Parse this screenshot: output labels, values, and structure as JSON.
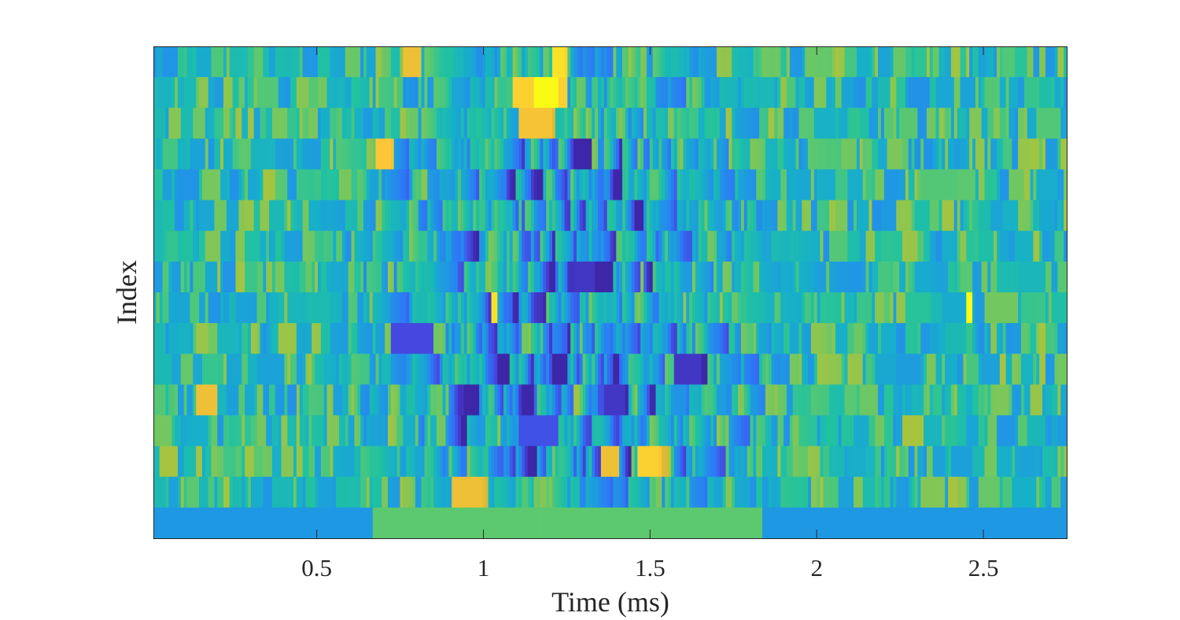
{
  "chart_data": {
    "type": "heatmap",
    "title": "",
    "xlabel": "Time (ms)",
    "ylabel": "Index",
    "xlim": [
      0.01,
      2.75
    ],
    "xticks": [
      0.5,
      1,
      1.5,
      2,
      2.5
    ],
    "xtick_labels": [
      "0.5",
      "1",
      "1.5",
      "2",
      "2.5"
    ],
    "yticks": [],
    "rows": 16,
    "colormap": "parula",
    "colormap_stops": [
      "#3e26a8",
      "#4548e0",
      "#2e77f7",
      "#1f98e3",
      "#17b0c8",
      "#21c2a0",
      "#5cc86f",
      "#a9c43e",
      "#dfb935",
      "#fcc638",
      "#f9fb15"
    ],
    "value_range": [
      0,
      1
    ],
    "grid": false,
    "colorbar": false,
    "features": [
      {
        "row": 1,
        "t_start": 1.08,
        "t_end": 1.25,
        "value": 0.92
      },
      {
        "row": 1,
        "t_start": 1.15,
        "t_end": 1.22,
        "value": 1.0
      },
      {
        "row": 0,
        "t_start": 0.75,
        "t_end": 0.8,
        "value": 0.85
      },
      {
        "row": 0,
        "t_start": 1.2,
        "t_end": 1.24,
        "value": 0.95
      },
      {
        "row": 2,
        "t_start": 1.1,
        "t_end": 1.2,
        "value": 0.88
      },
      {
        "row": 3,
        "t_start": 0.67,
        "t_end": 0.72,
        "value": 0.9
      },
      {
        "row": 8,
        "t_start": 2.44,
        "t_end": 2.46,
        "value": 1.0
      },
      {
        "row": 8,
        "t_start": 1.02,
        "t_end": 1.04,
        "value": 0.95
      },
      {
        "row": 11,
        "t_start": 0.13,
        "t_end": 0.2,
        "value": 0.85
      },
      {
        "row": 13,
        "t_start": 1.46,
        "t_end": 1.52,
        "value": 0.92
      },
      {
        "row": 13,
        "t_start": 1.35,
        "t_end": 1.4,
        "value": 0.85
      },
      {
        "row": 14,
        "t_start": 0.9,
        "t_end": 0.99,
        "value": 0.85
      },
      {
        "row": 15,
        "t_start": 0.66,
        "t_end": 1.83,
        "value": 0.6
      },
      {
        "row": 7,
        "t_start": 1.27,
        "t_end": 1.33,
        "value": 0.05
      },
      {
        "row": 9,
        "t_start": 0.72,
        "t_end": 0.85,
        "value": 0.1
      },
      {
        "row": 10,
        "t_start": 1.57,
        "t_end": 1.65,
        "value": 0.05
      },
      {
        "row": 11,
        "t_start": 1.36,
        "t_end": 1.42,
        "value": 0.05
      },
      {
        "row": 12,
        "t_start": 1.1,
        "t_end": 1.22,
        "value": 0.12
      }
    ]
  }
}
